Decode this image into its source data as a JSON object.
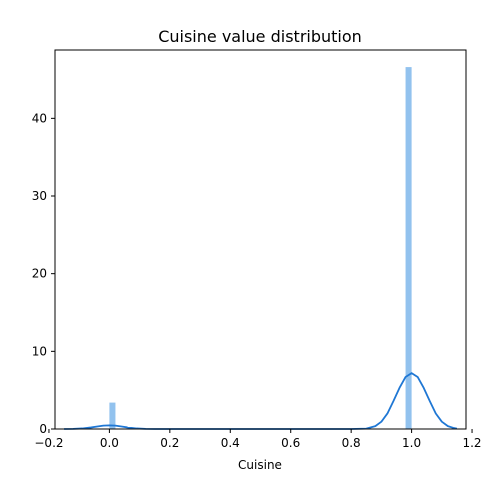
{
  "chart_data": {
    "type": "bar",
    "title": "Cuisine value distribution",
    "xlabel": "Cuisine",
    "ylabel": "",
    "xlim": [
      -0.18,
      1.18
    ],
    "ylim": [
      0,
      48.8
    ],
    "xticks": [
      {
        "value": -0.2,
        "label": "−0.2"
      },
      {
        "value": 0.0,
        "label": "0.0"
      },
      {
        "value": 0.2,
        "label": "0.2"
      },
      {
        "value": 0.4,
        "label": "0.4"
      },
      {
        "value": 0.6,
        "label": "0.6"
      },
      {
        "value": 0.8,
        "label": "0.8"
      },
      {
        "value": 1.0,
        "label": "1.0"
      },
      {
        "value": 1.2,
        "label": "1.2"
      }
    ],
    "yticks": [
      {
        "value": 0,
        "label": "0"
      },
      {
        "value": 10,
        "label": "10"
      },
      {
        "value": 20,
        "label": "20"
      },
      {
        "value": 30,
        "label": "30"
      },
      {
        "value": 40,
        "label": "40"
      }
    ],
    "histogram": {
      "color": "#92c2ee",
      "bin_width": 0.02,
      "bins": [
        {
          "x_start": 0.0,
          "x_end": 0.02,
          "value": 3.4
        },
        {
          "x_start": 0.98,
          "x_end": 1.0,
          "value": 46.6
        }
      ]
    },
    "kde": {
      "color": "#1f77d4",
      "points": [
        [
          -0.15,
          0.0
        ],
        [
          -0.12,
          0.02
        ],
        [
          -0.09,
          0.07
        ],
        [
          -0.06,
          0.2
        ],
        [
          -0.04,
          0.32
        ],
        [
          -0.02,
          0.43
        ],
        [
          0.0,
          0.47
        ],
        [
          0.02,
          0.43
        ],
        [
          0.04,
          0.32
        ],
        [
          0.06,
          0.2
        ],
        [
          0.09,
          0.07
        ],
        [
          0.12,
          0.02
        ],
        [
          0.15,
          0.0
        ],
        [
          0.3,
          0.0
        ],
        [
          0.5,
          0.0
        ],
        [
          0.7,
          0.0
        ],
        [
          0.8,
          0.0
        ],
        [
          0.85,
          0.05
        ],
        [
          0.88,
          0.37
        ],
        [
          0.9,
          0.94
        ],
        [
          0.92,
          2.0
        ],
        [
          0.94,
          3.6
        ],
        [
          0.96,
          5.3
        ],
        [
          0.98,
          6.7
        ],
        [
          1.0,
          7.2
        ],
        [
          1.02,
          6.7
        ],
        [
          1.04,
          5.3
        ],
        [
          1.06,
          3.6
        ],
        [
          1.08,
          2.0
        ],
        [
          1.1,
          0.94
        ],
        [
          1.12,
          0.37
        ],
        [
          1.14,
          0.12
        ],
        [
          1.15,
          0.05
        ]
      ]
    },
    "grid": false,
    "legend": "none"
  }
}
